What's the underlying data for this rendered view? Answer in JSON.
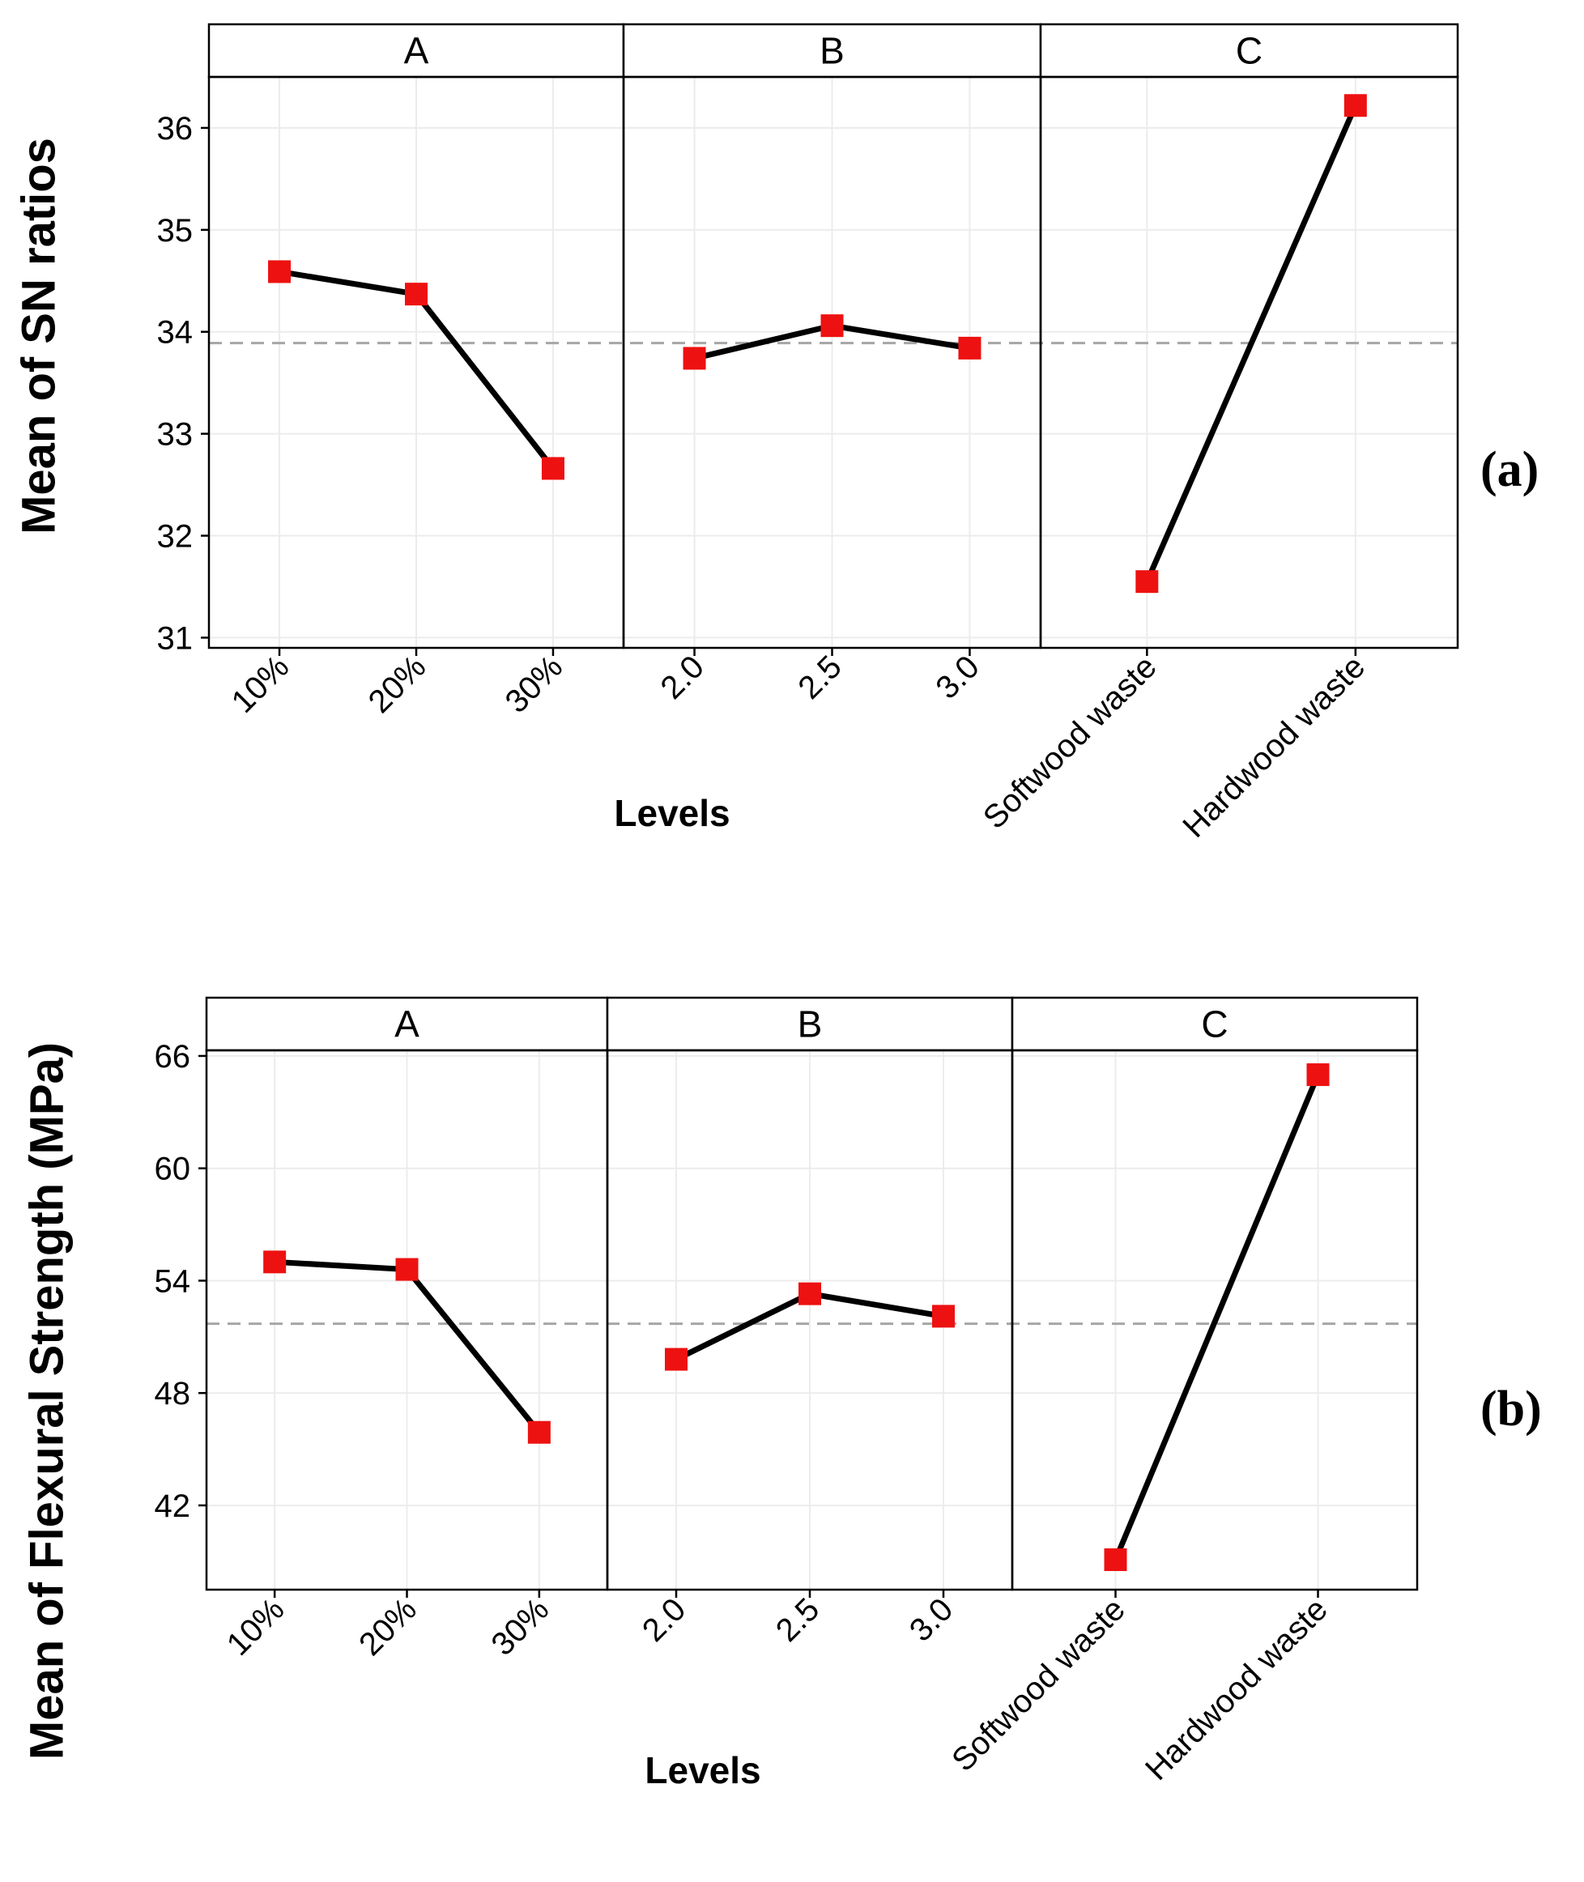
{
  "chart_data": [
    {
      "type": "line",
      "panel_tag": "(a)",
      "ylabel": "Mean of SN ratios",
      "xlabel": "Levels",
      "ylim": [
        30.9,
        36.5
      ],
      "yticks": [
        "31",
        "32",
        "33",
        "34",
        "35",
        "36"
      ],
      "ytick_values": [
        31,
        32,
        33,
        34,
        35,
        36
      ],
      "mean_line": 33.89,
      "facets": [
        {
          "label": "A",
          "categories": [
            "10%",
            "20%",
            "30%"
          ],
          "values": [
            34.59,
            34.37,
            32.66
          ]
        },
        {
          "label": "B",
          "categories": [
            "2.0",
            "2.5",
            "3.0"
          ],
          "values": [
            33.74,
            34.06,
            33.84
          ]
        },
        {
          "label": "C",
          "categories": [
            "Softwood waste",
            "Hardwood waste"
          ],
          "values": [
            31.55,
            36.22
          ]
        }
      ],
      "colors": {
        "line": "#000000",
        "marker": "#ee1111",
        "mean_line": "#a6a6a6",
        "grid": "#ececec"
      }
    },
    {
      "type": "line",
      "panel_tag": "(b)",
      "ylabel": "Mean of Flexural Strength (MPa)",
      "xlabel": "Levels",
      "ylim": [
        37.5,
        66.3
      ],
      "yticks": [
        "42",
        "48",
        "54",
        "60",
        "66"
      ],
      "ytick_values": [
        42,
        48,
        54,
        60,
        66
      ],
      "mean_line": 51.7,
      "facets": [
        {
          "label": "A",
          "categories": [
            "10%",
            "20%",
            "30%"
          ],
          "values": [
            55.0,
            54.6,
            45.9
          ]
        },
        {
          "label": "B",
          "categories": [
            "2.0",
            "2.5",
            "3.0"
          ],
          "values": [
            49.8,
            53.3,
            52.1
          ]
        },
        {
          "label": "C",
          "categories": [
            "Softwood waste",
            "Hardwood waste"
          ],
          "values": [
            39.1,
            65.0
          ]
        }
      ],
      "colors": {
        "line": "#000000",
        "marker": "#ee1111",
        "mean_line": "#a6a6a6",
        "grid": "#ececec"
      }
    }
  ]
}
